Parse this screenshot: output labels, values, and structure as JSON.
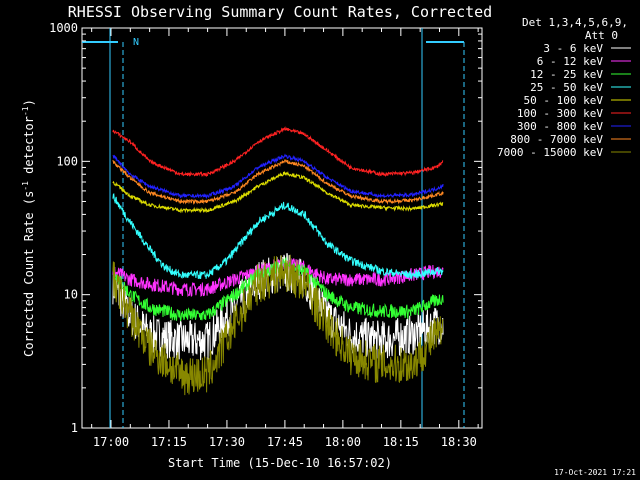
{
  "chart_data": {
    "type": "line",
    "title": "RHESSI Observing Summary Count Rates, Corrected",
    "xlabel": "Start Time (15-Dec-10 16:57:02)",
    "ylabel_main": "Corrected Count Rate (s",
    "ylabel_sup1": "-1",
    "ylabel_mid": " detector",
    "ylabel_sup2": "-1",
    "ylabel_end": ")",
    "y_scale": "log",
    "ylim": [
      1,
      1000
    ],
    "xlim_minutes_from_17_00": [
      -3.0,
      36.0
    ],
    "x_tick_labels": [
      "17:00",
      "17:15",
      "17:30",
      "17:45",
      "18:00",
      "18:15",
      "18:30"
    ],
    "x_tick_minutes_from_17_00": [
      0,
      15,
      30,
      45,
      60,
      75,
      90
    ],
    "y_tick_labels": [
      "1",
      "10",
      "100",
      "1000"
    ],
    "y_tick_values": [
      1,
      10,
      100,
      1000
    ],
    "legend_header": [
      "Det 1,3,4,5,6,9,",
      "Att 0"
    ],
    "legend_placement": "right",
    "night_flag_label": "N",
    "series": [
      {
        "name": "3 - 6 keV",
        "color": "#ffffff",
        "keypoints": [
          [
            0.5,
            12
          ],
          [
            5,
            7
          ],
          [
            10,
            5
          ],
          [
            18,
            4.5
          ],
          [
            25,
            4.5
          ],
          [
            32,
            8
          ],
          [
            38,
            13
          ],
          [
            45,
            15
          ],
          [
            50,
            13
          ],
          [
            56,
            7
          ],
          [
            62,
            5
          ],
          [
            70,
            4.5
          ],
          [
            78,
            5
          ],
          [
            84,
            6
          ],
          [
            86,
            6
          ]
        ]
      },
      {
        "name": "6 - 12 keV",
        "color": "#ff33ff",
        "keypoints": [
          [
            0.5,
            15
          ],
          [
            5,
            13
          ],
          [
            10,
            12
          ],
          [
            18,
            11
          ],
          [
            25,
            11
          ],
          [
            32,
            13
          ],
          [
            38,
            15
          ],
          [
            45,
            17
          ],
          [
            50,
            16
          ],
          [
            56,
            13
          ],
          [
            62,
            13
          ],
          [
            70,
            13
          ],
          [
            78,
            14
          ],
          [
            84,
            15
          ],
          [
            86,
            15
          ]
        ]
      },
      {
        "name": "12 - 25 keV",
        "color": "#33ff33",
        "keypoints": [
          [
            0.5,
            15
          ],
          [
            5,
            10
          ],
          [
            10,
            8
          ],
          [
            18,
            7
          ],
          [
            25,
            7
          ],
          [
            32,
            10
          ],
          [
            38,
            14
          ],
          [
            45,
            17
          ],
          [
            50,
            15
          ],
          [
            56,
            10
          ],
          [
            62,
            8
          ],
          [
            70,
            7.5
          ],
          [
            78,
            7.5
          ],
          [
            84,
            9
          ],
          [
            86,
            9.5
          ]
        ]
      },
      {
        "name": "25 - 50 keV",
        "color": "#33ffff",
        "keypoints": [
          [
            0.5,
            55
          ],
          [
            5,
            35
          ],
          [
            10,
            22
          ],
          [
            14,
            16
          ],
          [
            18,
            14
          ],
          [
            25,
            14
          ],
          [
            30,
            18
          ],
          [
            38,
            35
          ],
          [
            45,
            47
          ],
          [
            50,
            40
          ],
          [
            56,
            24
          ],
          [
            62,
            18
          ],
          [
            70,
            15
          ],
          [
            78,
            14
          ],
          [
            84,
            15
          ],
          [
            86,
            15
          ]
        ]
      },
      {
        "name": "50 - 100 keV",
        "color": "#dddd00",
        "keypoints": [
          [
            0.5,
            70
          ],
          [
            5,
            55
          ],
          [
            10,
            47
          ],
          [
            18,
            43
          ],
          [
            25,
            43
          ],
          [
            32,
            50
          ],
          [
            38,
            65
          ],
          [
            45,
            82
          ],
          [
            50,
            75
          ],
          [
            56,
            58
          ],
          [
            62,
            47
          ],
          [
            70,
            45
          ],
          [
            78,
            44
          ],
          [
            84,
            47
          ],
          [
            86,
            48
          ]
        ]
      },
      {
        "name": "100 - 300 keV",
        "color": "#ff2222",
        "keypoints": [
          [
            0.5,
            170
          ],
          [
            5,
            140
          ],
          [
            10,
            100
          ],
          [
            18,
            80
          ],
          [
            25,
            80
          ],
          [
            32,
            100
          ],
          [
            38,
            140
          ],
          [
            45,
            175
          ],
          [
            50,
            160
          ],
          [
            56,
            120
          ],
          [
            62,
            90
          ],
          [
            70,
            80
          ],
          [
            78,
            82
          ],
          [
            84,
            90
          ],
          [
            86,
            100
          ]
        ]
      },
      {
        "name": "300 - 800 keV",
        "color": "#2222ff",
        "keypoints": [
          [
            0.5,
            110
          ],
          [
            5,
            80
          ],
          [
            10,
            65
          ],
          [
            18,
            55
          ],
          [
            25,
            55
          ],
          [
            32,
            65
          ],
          [
            38,
            90
          ],
          [
            45,
            110
          ],
          [
            50,
            100
          ],
          [
            56,
            75
          ],
          [
            62,
            60
          ],
          [
            70,
            55
          ],
          [
            78,
            56
          ],
          [
            84,
            62
          ],
          [
            86,
            66
          ]
        ]
      },
      {
        "name": "800 - 7000 keV",
        "color": "#ff8822",
        "keypoints": [
          [
            0.5,
            100
          ],
          [
            5,
            75
          ],
          [
            10,
            58
          ],
          [
            18,
            50
          ],
          [
            25,
            50
          ],
          [
            32,
            58
          ],
          [
            38,
            80
          ],
          [
            45,
            100
          ],
          [
            50,
            92
          ],
          [
            56,
            68
          ],
          [
            62,
            55
          ],
          [
            70,
            50
          ],
          [
            78,
            51
          ],
          [
            84,
            56
          ],
          [
            86,
            58
          ]
        ]
      },
      {
        "name": "7000 - 15000 keV",
        "color": "#888800",
        "keypoints": [
          [
            0.5,
            13
          ],
          [
            5,
            7
          ],
          [
            10,
            4
          ],
          [
            18,
            2.5
          ],
          [
            25,
            2.5
          ],
          [
            32,
            6
          ],
          [
            38,
            12
          ],
          [
            45,
            15
          ],
          [
            50,
            12
          ],
          [
            56,
            6
          ],
          [
            62,
            3.5
          ],
          [
            70,
            3
          ],
          [
            78,
            3
          ],
          [
            84,
            5
          ],
          [
            86,
            5
          ]
        ]
      }
    ],
    "footer_timestamp": "17-Oct-2021 17:21"
  }
}
